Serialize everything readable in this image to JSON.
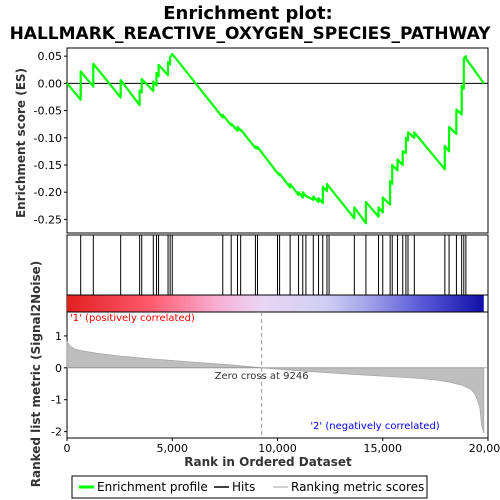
{
  "chart_data": {
    "type": "line",
    "title_line1": "Enrichment plot:",
    "title_line2": "HALLMARK_REACTIVE_OXYGEN_SPECIES_PATHWAY",
    "top_ylabel": "Enrichment score (ES)",
    "bottom_ylabel": "Ranked list metric (Signal2Noise)",
    "xlabel": "Rank in Ordered Dataset",
    "xlim": [
      0,
      20000
    ],
    "x_ticks": [
      0,
      5000,
      10000,
      15000,
      20000
    ],
    "x_tick_labels": [
      "0",
      "5,000",
      "10,000",
      "15,000",
      "20,000"
    ],
    "es_ylim": [
      -0.275,
      0.065
    ],
    "es_ticks": [
      0.05,
      0.0,
      -0.05,
      -0.1,
      -0.15,
      -0.2,
      -0.25
    ],
    "es_tick_labels": [
      "0.05",
      "0.00",
      "-0.05",
      "-0.10",
      "-0.15",
      "-0.20",
      "-0.25"
    ],
    "metric_ylim": [
      -2.2,
      1.75
    ],
    "metric_ticks": [
      1,
      0,
      -1,
      -2
    ],
    "metric_tick_labels": [
      "1",
      "0",
      "-1",
      "-2"
    ],
    "zero_cross_rank": 9246,
    "zero_cross_label": "Zero cross at 9246",
    "pos_label": "'1' (positively correlated)",
    "neg_label": "'2' (negatively correlated)",
    "n_genes": 19800,
    "hit_ranks": [
      650,
      1250,
      2550,
      3450,
      3550,
      4100,
      4250,
      4350,
      4800,
      4900,
      5000,
      7400,
      7800,
      8100,
      8250,
      8950,
      9050,
      10000,
      10100,
      10600,
      11000,
      11200,
      11350,
      11700,
      11950,
      12150,
      12350,
      12450,
      13650,
      14200,
      14800,
      15000,
      15350,
      15450,
      15700,
      15950,
      16100,
      16200,
      16500,
      17950,
      18150,
      18500,
      18750,
      18850,
      18950
    ],
    "es_profile": {
      "x": [
        0,
        650,
        650,
        1250,
        1250,
        2550,
        2550,
        3450,
        3450,
        3550,
        3550,
        4100,
        4100,
        4250,
        4250,
        4350,
        4350,
        4800,
        4800,
        4900,
        4900,
        5000,
        5000,
        7400,
        7400,
        7800,
        7800,
        8100,
        8100,
        8250,
        8250,
        8950,
        8950,
        9050,
        9050,
        10000,
        10000,
        10100,
        10100,
        10600,
        10600,
        11000,
        11000,
        11200,
        11200,
        11350,
        11350,
        11700,
        11700,
        11950,
        11950,
        12150,
        12150,
        12350,
        12350,
        12450,
        12450,
        13650,
        13650,
        14200,
        14200,
        14800,
        14800,
        15000,
        15000,
        15350,
        15350,
        15450,
        15450,
        15700,
        15700,
        15950,
        15950,
        16100,
        16100,
        16200,
        16200,
        16500,
        16500,
        17950,
        17950,
        18150,
        18150,
        18500,
        18500,
        18750,
        18750,
        18850,
        18850,
        18950,
        18950,
        19800
      ],
      "y": [
        0.0,
        -0.03,
        0.022,
        -0.006,
        0.036,
        -0.026,
        0.006,
        -0.04,
        -0.013,
        -0.017,
        0.008,
        -0.014,
        0.003,
        -0.004,
        0.019,
        0.013,
        0.034,
        0.015,
        0.039,
        0.035,
        0.048,
        0.054,
        0.054,
        -0.063,
        -0.058,
        -0.077,
        -0.074,
        -0.087,
        -0.08,
        -0.087,
        -0.085,
        -0.119,
        -0.116,
        -0.12,
        -0.117,
        -0.165,
        -0.164,
        -0.169,
        -0.166,
        -0.191,
        -0.185,
        -0.205,
        -0.2,
        -0.21,
        -0.2,
        -0.207,
        -0.207,
        -0.214,
        -0.208,
        -0.218,
        -0.211,
        -0.22,
        -0.19,
        -0.198,
        -0.185,
        -0.19,
        -0.19,
        -0.248,
        -0.228,
        -0.257,
        -0.218,
        -0.245,
        -0.228,
        -0.237,
        -0.21,
        -0.223,
        -0.18,
        -0.185,
        -0.15,
        -0.16,
        -0.14,
        -0.15,
        -0.125,
        -0.128,
        -0.1,
        -0.105,
        -0.09,
        -0.1,
        -0.09,
        -0.158,
        -0.115,
        -0.125,
        -0.08,
        -0.093,
        -0.048,
        -0.057,
        -0.005,
        -0.01,
        0.046,
        0.05,
        0.046,
        0.0
      ]
    },
    "metric_curve": {
      "x": [
        0,
        150,
        400,
        800,
        1500,
        2500,
        4000,
        6000,
        8000,
        9246,
        11000,
        13000,
        15000,
        16500,
        17500,
        18200,
        18800,
        19200,
        19400,
        19600,
        19700,
        19800
      ],
      "y": [
        0.82,
        0.68,
        0.58,
        0.52,
        0.45,
        0.37,
        0.28,
        0.18,
        0.08,
        0.0,
        -0.09,
        -0.18,
        -0.26,
        -0.32,
        -0.38,
        -0.45,
        -0.55,
        -0.68,
        -0.85,
        -1.2,
        -1.8,
        -2.05
      ]
    },
    "legend": [
      {
        "label": "Enrichment profile",
        "color": "#00ff00"
      },
      {
        "label": "Hits",
        "color": "#000000"
      },
      {
        "label": "Ranking metric scores",
        "color": "#c0c0c0"
      }
    ],
    "colors": {
      "profile": "#00ff00",
      "pos": "#cc0000",
      "neg": "#0000bb",
      "fill": "#bebebe",
      "pos_text": "#ff0000",
      "neg_text": "#0000ff"
    }
  }
}
